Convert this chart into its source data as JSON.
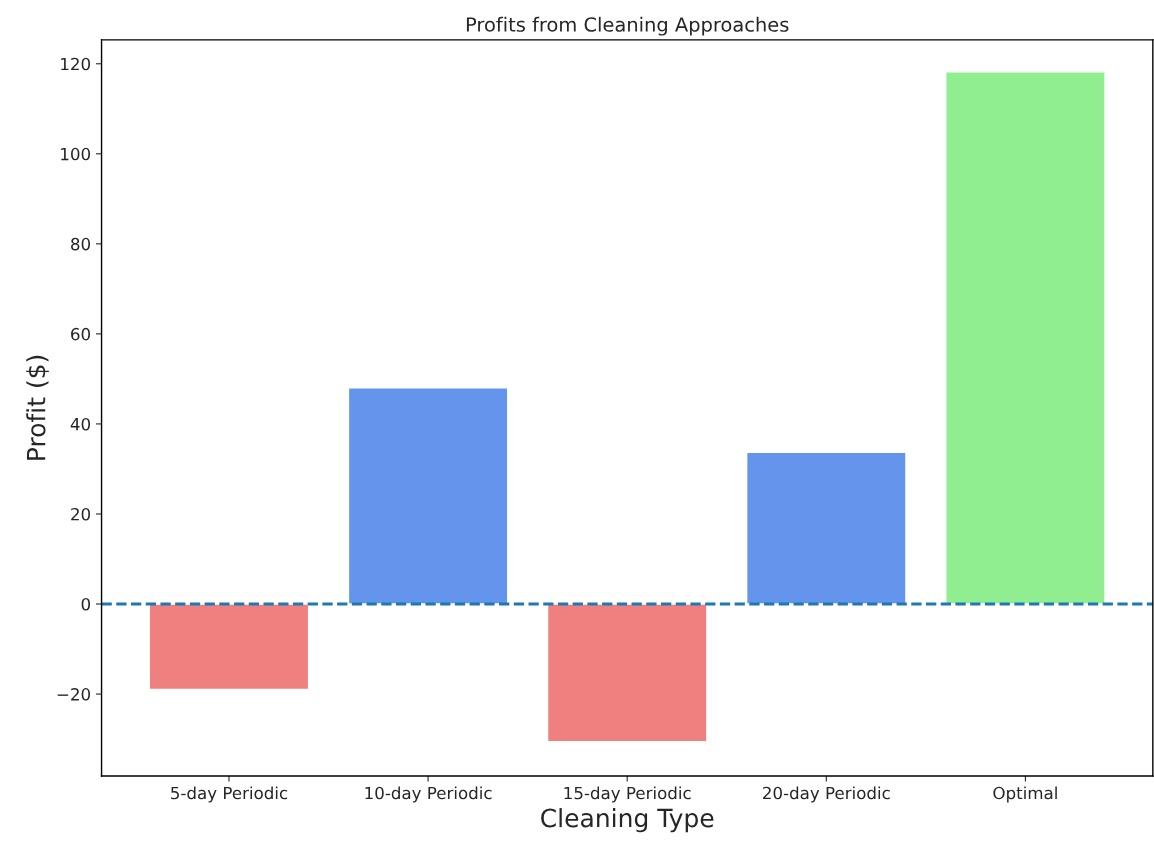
{
  "chart_data": {
    "type": "bar",
    "title": "Profits from Cleaning Approaches",
    "xlabel": "Cleaning Type",
    "ylabel": "Profit ($)",
    "categories": [
      "5-day Periodic",
      "10-day Periodic",
      "15-day Periodic",
      "20-day Periodic",
      "Optimal"
    ],
    "values": [
      -19,
      48,
      -30.6,
      33.7,
      118.2
    ],
    "colors": [
      "#f08080",
      "#6495ed",
      "#f08080",
      "#6495ed",
      "#90ee90"
    ],
    "ylim": [
      -38.2,
      125.3
    ],
    "yticks": [
      -20,
      0,
      20,
      40,
      60,
      80,
      100,
      120
    ],
    "ref_lines": [
      {
        "axis": "y",
        "value": 0,
        "color": "#1f77b4",
        "line_style": "dashed"
      }
    ],
    "grid": false
  }
}
